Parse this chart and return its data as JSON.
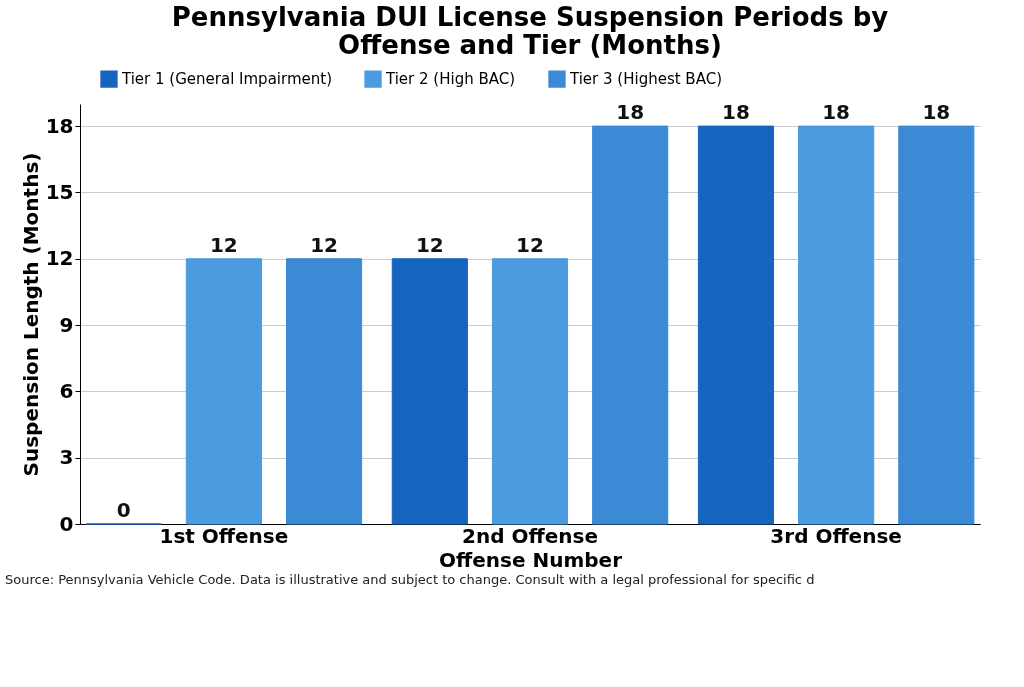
{
  "chart_data": {
    "type": "bar",
    "title": "Pennsylvania DUI License Suspension Periods by Offense and Tier (Months)",
    "xlabel": "Offense Number",
    "ylabel": "Suspension Length (Months)",
    "categories": [
      "1st Offense",
      "2nd Offense",
      "3rd Offense"
    ],
    "series": [
      {
        "name": "Tier 1 (General Impairment)",
        "color": "#1565c0",
        "values": [
          0,
          12,
          18
        ]
      },
      {
        "name": "Tier 2 (High BAC)",
        "color": "#4a9be0",
        "values": [
          12,
          12,
          18
        ]
      },
      {
        "name": "Tier 3 (Highest BAC)",
        "color": "#3a8ad6",
        "values": [
          12,
          18,
          18
        ]
      }
    ],
    "ylim": [
      0,
      19
    ],
    "yticks": [
      0,
      3,
      6,
      9,
      12,
      15,
      18
    ],
    "grid": "y",
    "legend": "top",
    "data_labels": true,
    "annotations": [
      "Source: Pennsylvania Vehicle Code. Data is illustrative and subject to change. Consult with a legal professional for specific d"
    ]
  }
}
